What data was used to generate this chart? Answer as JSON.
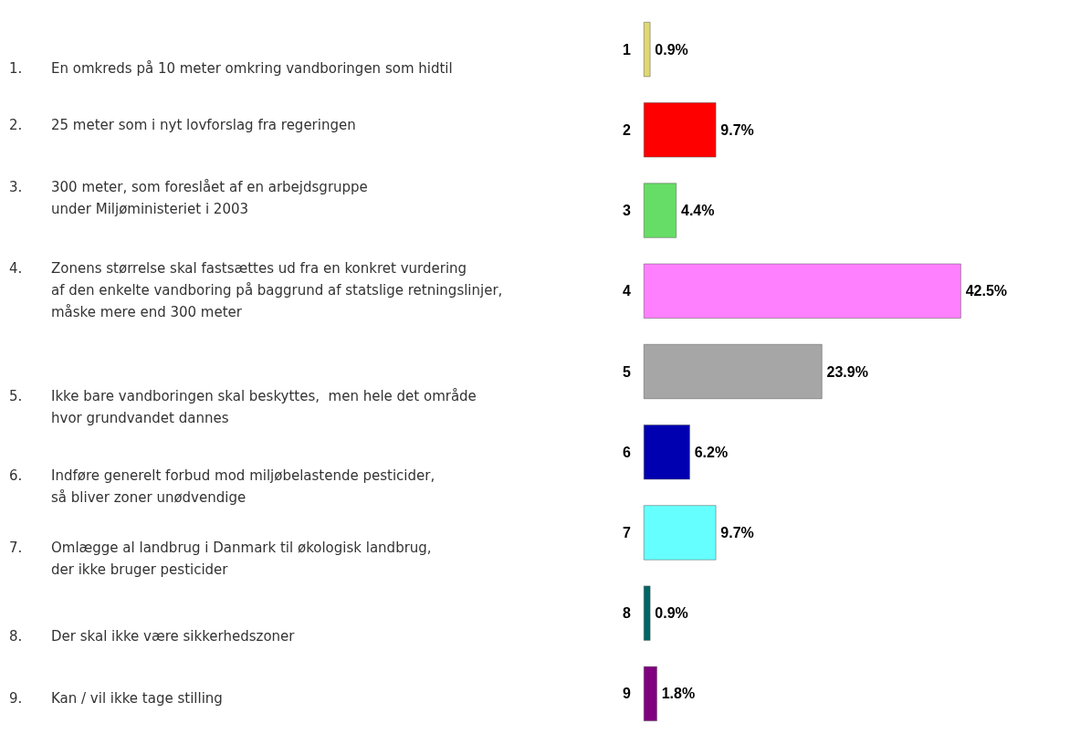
{
  "chart_data": {
    "type": "bar",
    "orientation": "horizontal",
    "tick_labels": "y",
    "categories": [
      "1",
      "2",
      "3",
      "4",
      "5",
      "6",
      "7",
      "8",
      "9"
    ],
    "values": [
      0.9,
      9.7,
      4.4,
      42.5,
      23.9,
      6.2,
      9.7,
      0.9,
      1.8
    ],
    "value_labels": [
      "0.9%",
      "9.7%",
      "4.4%",
      "42.5%",
      "23.9%",
      "6.2%",
      "9.7%",
      "0.9%",
      "1.8%"
    ],
    "colors": [
      "#e0d870",
      "#ff0000",
      "#66dd66",
      "#ff80ff",
      "#a6a6a6",
      "#0000b0",
      "#66ffff",
      "#006666",
      "#800080"
    ],
    "annotations": [
      "1.\tEn omkreds på 10 meter omkring vandboringen som hidtil",
      "2.\t25 meter som i nyt lovforslag fra regeringen",
      "3.\t300 meter, som foreslået af en arbejdsgruppe\nunder Miljøministeriet i 2003",
      "4.\tZonens størrelse skal fastsættes ud fra en konkret vurdering\naf den enkelte vandboring på baggrund af statslige retningslinjer,\nmåske mere end 300 meter",
      "5.\tIkke bare vandboringen skal beskyttes,  men hele det område\nhvor grundvandet dannes",
      "6.\tIndføre generelt forbud mod miljøbelastende pesticider,\nså bliver zoner unødvendige",
      "7.\tOmlægge al landbrug i Danmark til økologisk landbrug,\nder ikke bruger pesticider",
      "8.\tDer skal ikke være sikkerhedszoner",
      "9.\tKan / vil ikke tage stilling"
    ]
  }
}
